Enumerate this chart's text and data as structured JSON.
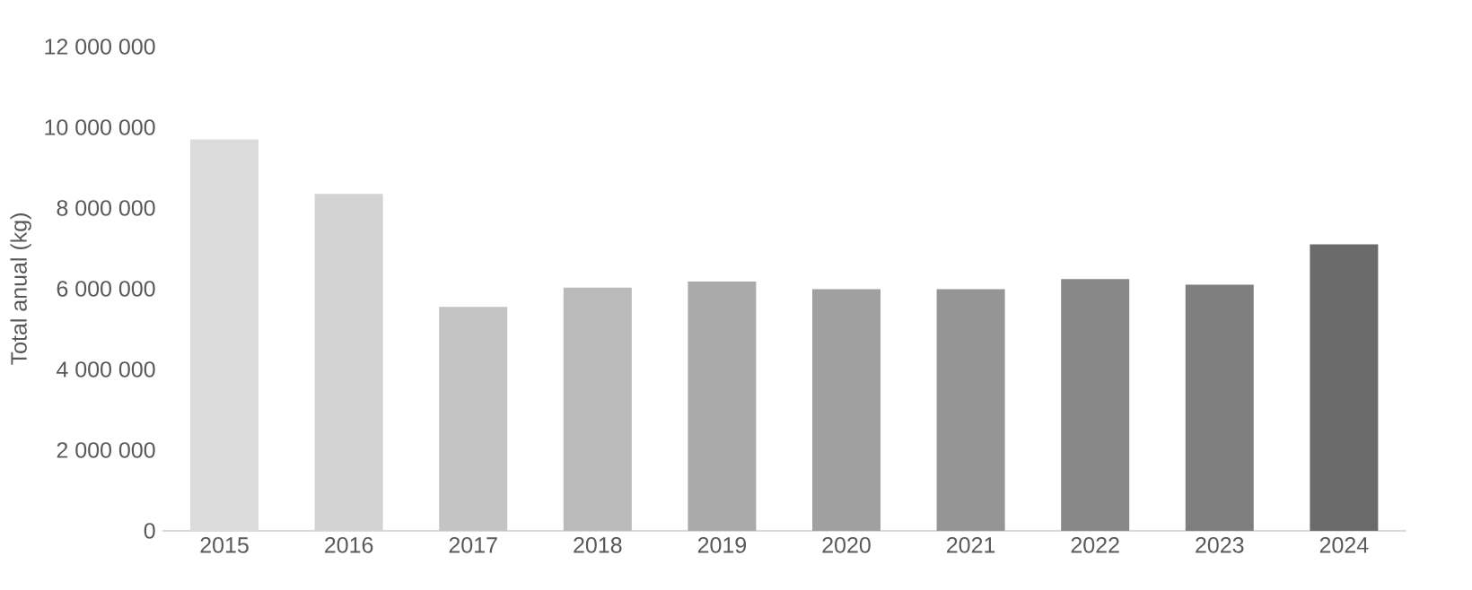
{
  "chart_data": {
    "type": "bar",
    "ylabel": "Total anual (kg)",
    "categories": [
      "2015",
      "2016",
      "2017",
      "2018",
      "2019",
      "2020",
      "2021",
      "2022",
      "2023",
      "2024"
    ],
    "values": [
      9700000,
      8350000,
      5550000,
      6030000,
      6180000,
      5990000,
      5990000,
      6240000,
      6100000,
      7100000
    ],
    "colors": [
      "#dcdcdc",
      "#d3d3d3",
      "#c4c4c4",
      "#bababa",
      "#aaaaaa",
      "#a0a0a0",
      "#959595",
      "#888888",
      "#7f7f7f",
      "#6b6b6b"
    ],
    "ylim": [
      0,
      12000000
    ],
    "yticks": [
      {
        "value": 0,
        "label": "0"
      },
      {
        "value": 2000000,
        "label": "2 000 000"
      },
      {
        "value": 4000000,
        "label": "4 000 000"
      },
      {
        "value": 6000000,
        "label": "6 000 000"
      },
      {
        "value": 8000000,
        "label": "8 000 000"
      },
      {
        "value": 10000000,
        "label": "10 000 000"
      },
      {
        "value": 12000000,
        "label": "12 000 000"
      }
    ],
    "grid": false
  }
}
